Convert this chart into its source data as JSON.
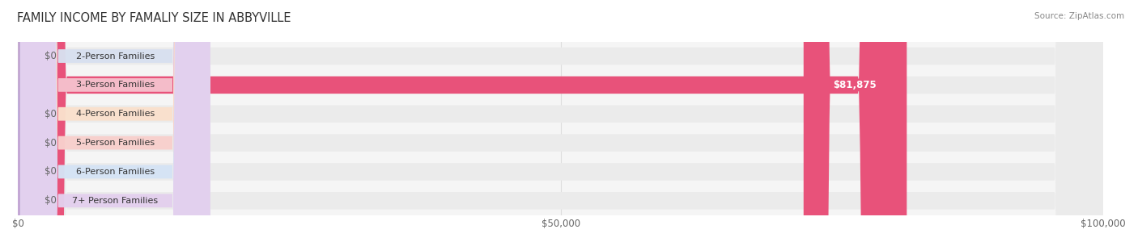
{
  "title": "FAMILY INCOME BY FAMALIY SIZE IN ABBYVILLE",
  "source": "Source: ZipAtlas.com",
  "categories": [
    "2-Person Families",
    "3-Person Families",
    "4-Person Families",
    "5-Person Families",
    "6-Person Families",
    "7+ Person Families"
  ],
  "values": [
    0,
    81875,
    0,
    0,
    0,
    0
  ],
  "bar_colors": [
    "#aab8d8",
    "#e8527a",
    "#f5c5a0",
    "#f0a8a0",
    "#a8bfe8",
    "#c4a8d5"
  ],
  "label_bg_colors": [
    "#d8e0f0",
    "#f5c0cc",
    "#fae0cc",
    "#f8d0cc",
    "#d5e3f5",
    "#e3d0ee"
  ],
  "bar_bg_color": "#ebebeb",
  "xlim": [
    0,
    100000
  ],
  "xtick_labels": [
    "$0",
    "$50,000",
    "$100,000"
  ],
  "xtick_values": [
    0,
    50000,
    100000
  ],
  "value_labels": [
    "$0",
    "$81,875",
    "$0",
    "$0",
    "$0",
    "$0"
  ],
  "fig_bg_color": "#ffffff",
  "title_fontsize": 10.5,
  "bar_height": 0.6,
  "source_fontsize": 7.5,
  "label_fontsize": 8.0,
  "value_fontsize": 8.5
}
